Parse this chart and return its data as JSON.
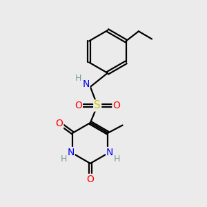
{
  "bg_color": "#ebebeb",
  "atom_colors": {
    "C": "#000000",
    "H": "#7a9a9a",
    "N": "#0000ee",
    "O": "#ff0000",
    "S": "#cccc00"
  },
  "bond_color": "#000000",
  "bond_width": 1.6,
  "figsize": [
    3.0,
    3.0
  ],
  "dpi": 100
}
